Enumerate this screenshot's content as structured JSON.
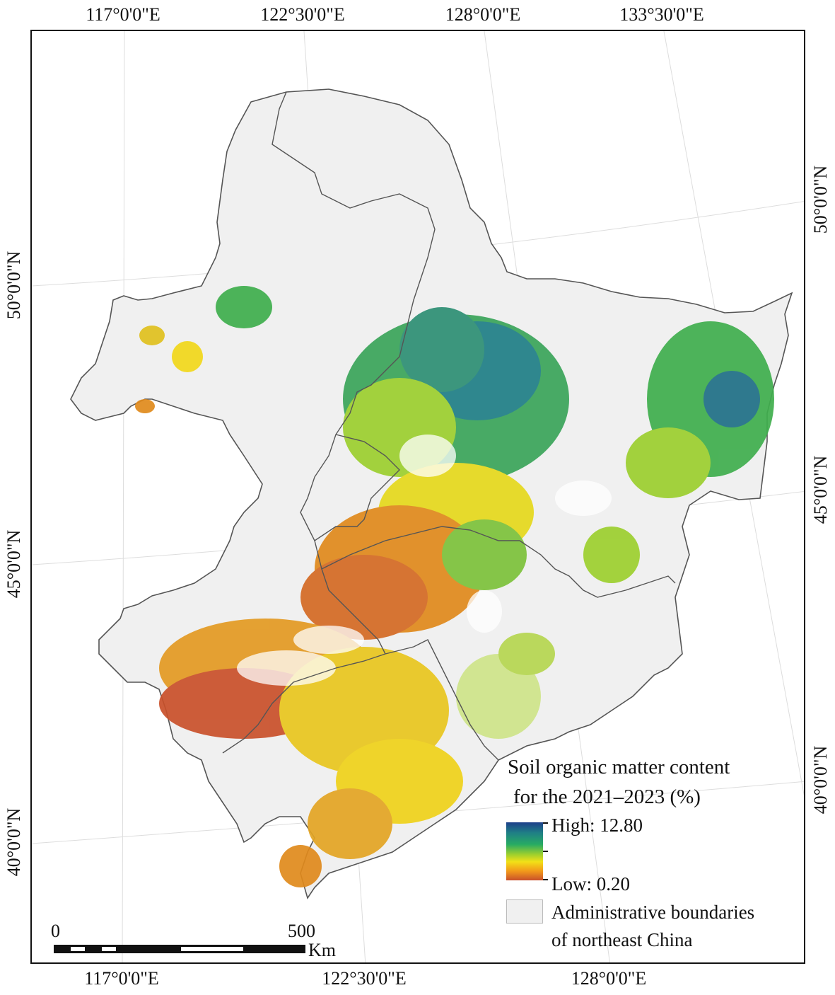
{
  "map": {
    "top_ticks": [
      "117°0'0\"E",
      "122°30'0\"E",
      "128°0'0\"E",
      "133°30'0\"E"
    ],
    "bottom_ticks": [
      "117°0'0\"E",
      "122°30'0\"E",
      "128°0'0\"E"
    ],
    "left_ticks": [
      "50°0'0\"N",
      "45°0'0\"N",
      "40°0'0\"N"
    ],
    "right_ticks": [
      "50°0'0\"N",
      "45°0'0\"N",
      "40°0'0\"N"
    ],
    "colors": {
      "background": "#f0f0f0",
      "boundary": "#555555",
      "high": "#1d3f8a",
      "mid": "#f2e017",
      "low": "#c9502a"
    }
  },
  "legend": {
    "title_line1": "Soil organic matter content",
    "title_line2": "for the 2021–2023 (%)",
    "high_label": "High: 12.80",
    "low_label": "Low: 0.20",
    "admin_line1": "Administrative boundaries",
    "admin_line2": "of northeast China"
  },
  "scalebar": {
    "zero": "0",
    "max": "500",
    "unit": "Km"
  }
}
